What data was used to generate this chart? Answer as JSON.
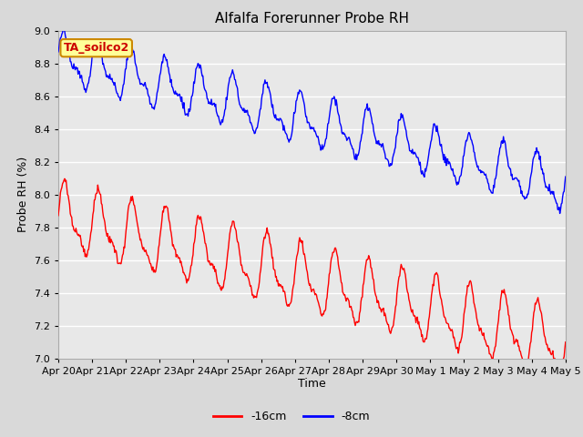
{
  "title": "Alfalfa Forerunner Probe RH",
  "xlabel": "Time",
  "ylabel": "Probe RH (%)",
  "ylim": [
    7.0,
    9.0
  ],
  "yticks": [
    7.0,
    7.2,
    7.4,
    7.6,
    7.8,
    8.0,
    8.2,
    8.4,
    8.6,
    8.8,
    9.0
  ],
  "x_labels": [
    "Apr 20",
    "Apr 21",
    "Apr 22",
    "Apr 23",
    "Apr 24",
    "Apr 25",
    "Apr 26",
    "Apr 27",
    "Apr 28",
    "Apr 29",
    "Apr 30",
    "May 1",
    "May 2",
    "May 3",
    "May 4",
    "May 5"
  ],
  "legend_labels": [
    "-16cm",
    "-8cm"
  ],
  "legend_colors": [
    "#ff0000",
    "#0000ff"
  ],
  "line_8cm_color": "#0000ff",
  "line_16cm_color": "#ff0000",
  "fig_bg_color": "#d9d9d9",
  "plot_bg_color": "#e8e8e8",
  "annotation_text": "TA_soilco2",
  "annotation_bg": "#ffff99",
  "annotation_border": "#cc8800",
  "annotation_text_color": "#cc0000",
  "title_fontsize": 11,
  "axis_label_fontsize": 9,
  "tick_fontsize": 8,
  "legend_fontsize": 9,
  "n_points": 720,
  "days": 15
}
